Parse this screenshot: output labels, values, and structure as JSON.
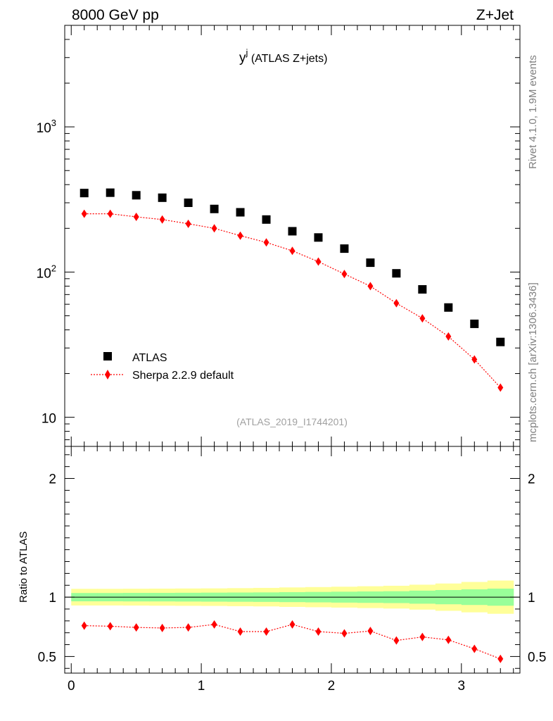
{
  "header": {
    "beam_label": "8000 GeV pp",
    "process_label": "Z+Jet"
  },
  "side_labels": {
    "rivet": "Rivet 4.1.0,  1.9M events",
    "source": "mcplots.cern.ch [arXiv:1306.3436]"
  },
  "colors": {
    "data": "#000000",
    "mc": "#ff0000",
    "band_inner": "#99ff99",
    "band_outer": "#ffff99",
    "side_text": "#808080"
  },
  "chart_data": [
    {
      "type": "scatter",
      "panel": "main",
      "title_main": "y",
      "title_sup": "j",
      "title_rest": " (ATLAS Z+jets)",
      "analysis_ref": "(ATLAS_2019_I1744201)",
      "yscale": "log",
      "xlim": [
        -0.05,
        3.45
      ],
      "ylim": [
        6.3,
        5000
      ],
      "y_ticks": [
        {
          "value": 10,
          "mantissa": "10",
          "exp": ""
        },
        {
          "value": 100,
          "mantissa": "10",
          "exp": "2"
        },
        {
          "value": 1000,
          "mantissa": "10",
          "exp": "3"
        }
      ],
      "legend": {
        "position": "lower-left",
        "entries": [
          {
            "label": "ATLAS",
            "marker": "square"
          },
          {
            "label": "Sherpa 2.2.9 default",
            "marker": "diamond-dotted-line"
          }
        ]
      },
      "x": [
        0.1,
        0.3,
        0.5,
        0.7,
        0.9,
        1.1,
        1.3,
        1.5,
        1.7,
        1.9,
        2.1,
        2.3,
        2.5,
        2.7,
        2.9,
        3.1,
        3.3
      ],
      "series": [
        {
          "name": "ATLAS",
          "values": [
            350,
            352,
            338,
            325,
            300,
            272,
            258,
            230,
            191,
            173,
            145,
            116,
            98,
            76,
            57,
            44,
            33
          ]
        },
        {
          "name": "Sherpa 2.2.9 default",
          "values": [
            252,
            252,
            240,
            230,
            215,
            200,
            178,
            160,
            140,
            118,
            97,
            80,
            61,
            48,
            36,
            25,
            16
          ]
        }
      ]
    },
    {
      "type": "line",
      "panel": "ratio",
      "ylabel": "Ratio to ATLAS",
      "xlim": [
        -0.05,
        3.45
      ],
      "ylim": [
        0.36,
        2.27
      ],
      "y_ticks": [
        {
          "value": 0.5,
          "label": "0.5"
        },
        {
          "value": 1,
          "label": "1"
        },
        {
          "value": 2,
          "label": "2"
        }
      ],
      "x_ticks": [
        {
          "value": 0,
          "label": "0"
        },
        {
          "value": 1,
          "label": "1"
        },
        {
          "value": 2,
          "label": "2"
        },
        {
          "value": 3,
          "label": "3"
        }
      ],
      "x_edges": [
        0,
        0.2,
        0.4,
        0.6,
        0.8,
        1.0,
        1.2,
        1.4,
        1.6,
        1.8,
        2.0,
        2.2,
        2.4,
        2.6,
        2.8,
        3.0,
        3.2,
        3.4
      ],
      "band_inner_halfwidth": [
        0.035,
        0.035,
        0.036,
        0.036,
        0.037,
        0.038,
        0.039,
        0.04,
        0.042,
        0.044,
        0.046,
        0.048,
        0.05,
        0.055,
        0.06,
        0.066,
        0.072
      ],
      "band_outer_halfwidth": [
        0.07,
        0.07,
        0.071,
        0.072,
        0.073,
        0.074,
        0.076,
        0.078,
        0.082,
        0.085,
        0.088,
        0.092,
        0.096,
        0.105,
        0.115,
        0.128,
        0.14
      ],
      "x": [
        0.1,
        0.3,
        0.5,
        0.7,
        0.9,
        1.1,
        1.3,
        1.5,
        1.7,
        1.9,
        2.1,
        2.3,
        2.5,
        2.7,
        2.9,
        3.1,
        3.3
      ],
      "series": [
        {
          "name": "Sherpa 2.2.9 default / ATLAS",
          "values": [
            0.76,
            0.755,
            0.745,
            0.74,
            0.745,
            0.77,
            0.71,
            0.71,
            0.77,
            0.71,
            0.695,
            0.715,
            0.635,
            0.665,
            0.64,
            0.565,
            0.48
          ]
        }
      ]
    }
  ]
}
